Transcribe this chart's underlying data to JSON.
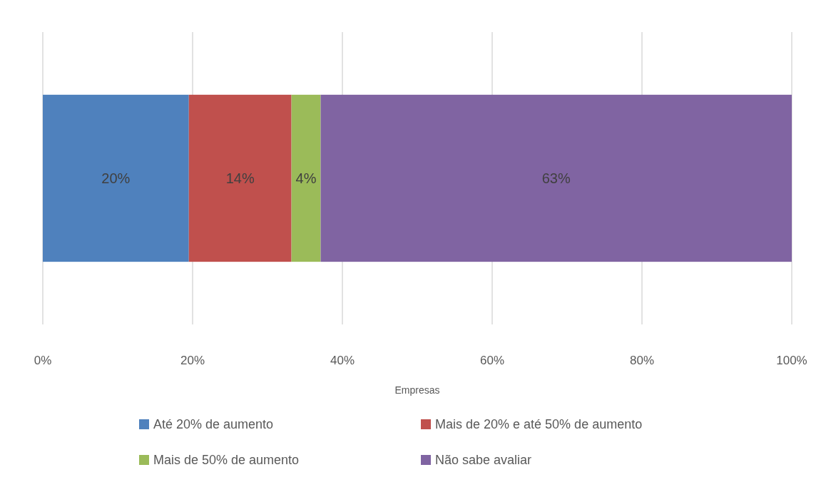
{
  "chart_data": {
    "type": "bar",
    "orientation": "horizontal",
    "stacked": true,
    "categories": [
      null
    ],
    "xlabel": "Empresas",
    "series": [
      {
        "name": "Até 20% de aumento",
        "color": "#4f81bd",
        "values": [
          19.5
        ],
        "value_labels": [
          "20%"
        ]
      },
      {
        "name": "Mais de 20% e até 50% de aumento",
        "color": "#c0504d",
        "values": [
          13.7
        ],
        "value_labels": [
          "14%"
        ]
      },
      {
        "name": "Mais de 50% de aumento",
        "color": "#9bbb59",
        "values": [
          3.9
        ],
        "value_labels": [
          "4%"
        ]
      },
      {
        "name": "Não sabe avaliar",
        "color": "#8064a2",
        "values": [
          62.9
        ],
        "value_labels": [
          "63%"
        ]
      }
    ],
    "xlim": [
      0,
      100
    ],
    "xticks": [
      {
        "value": 0,
        "label": "0%"
      },
      {
        "value": 20,
        "label": "20%"
      },
      {
        "value": 40,
        "label": "40%"
      },
      {
        "value": 60,
        "label": "60%"
      },
      {
        "value": 80,
        "label": "80%"
      },
      {
        "value": 100,
        "label": "100%"
      }
    ],
    "grid": "x",
    "legend": "bottom"
  }
}
